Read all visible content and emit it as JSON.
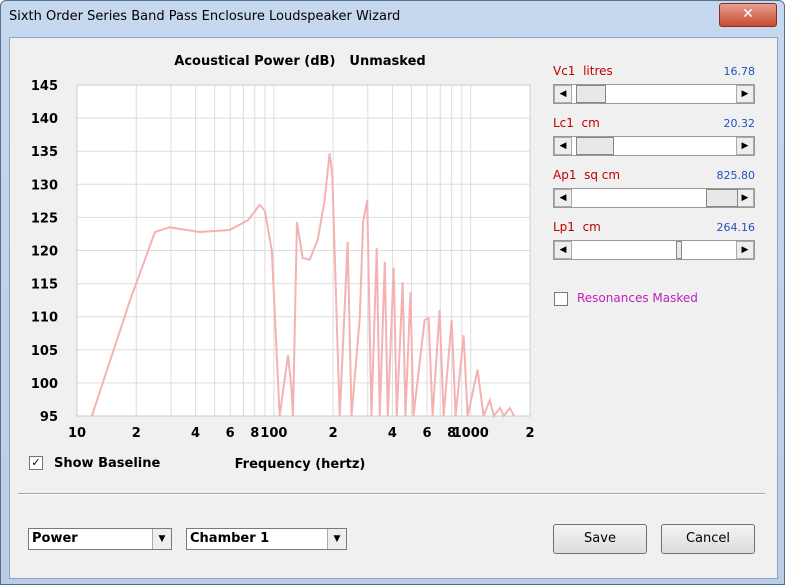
{
  "window": {
    "title": "Sixth Order Series Band Pass Enclosure Loudspeaker Wizard"
  },
  "chart_data": {
    "type": "line",
    "title": "Acoustical Power (dB)",
    "subtitle": "Unmasked",
    "x_label": "Frequency (hertz)",
    "x_scale": "log",
    "grid": true,
    "xlim": [
      10,
      2000
    ],
    "ylim": [
      95,
      145
    ],
    "xticks": [
      10,
      {
        "value": 20,
        "label": "2"
      },
      {
        "value": 40,
        "label": "4"
      },
      {
        "value": 60,
        "label": "6"
      },
      {
        "value": 80,
        "label": "8"
      },
      100,
      {
        "value": 200,
        "label": "2"
      },
      {
        "value": 400,
        "label": "4"
      },
      {
        "value": 600,
        "label": "6"
      },
      {
        "value": 800,
        "label": "8"
      },
      1000,
      {
        "value": 2000,
        "label": "2"
      }
    ],
    "minor_xticks": [
      30,
      50,
      70,
      90,
      300,
      500,
      700,
      900
    ],
    "yticks": [
      95,
      100,
      105,
      110,
      115,
      120,
      125,
      130,
      135,
      140,
      145
    ],
    "series": [
      {
        "color": "#f4b2b2",
        "x": [
          11.9,
          18.6,
          24.9,
          29.6,
          42,
          59.8,
          74,
          84.7,
          90,
          97.6,
          107,
          118,
          123,
          125,
          131,
          140,
          152,
          167,
          181,
          192,
          198,
          216,
          237,
          248,
          273,
          284,
          298,
          313,
          333,
          345,
          366,
          379,
          406,
          421,
          451,
          466,
          494,
          512,
          583,
          611,
          640,
          695,
          728,
          800,
          838,
          920,
          964,
          1083,
          1162,
          1250,
          1311,
          1406,
          1474,
          1580,
          1660
        ],
        "values": [
          95,
          112.5,
          122.8,
          123.5,
          122.8,
          123.1,
          124.6,
          126.9,
          126,
          120,
          95,
          104.2,
          99,
          95,
          124.3,
          118.9,
          118.6,
          121.6,
          127.6,
          134.7,
          131.4,
          95,
          121.3,
          95,
          109.8,
          124.3,
          127.6,
          95,
          120.4,
          95,
          118.3,
          95,
          117.4,
          95,
          115.2,
          95,
          113.7,
          95,
          109.5,
          109.8,
          95,
          111,
          95,
          109.5,
          95,
          107.2,
          95,
          102,
          95,
          97.4,
          95,
          96.2,
          95,
          96.2,
          95
        ]
      }
    ]
  },
  "sliders": [
    {
      "label": "Vc1  litres",
      "value": "16.78"
    },
    {
      "label": "Lc1  cm",
      "value": "20.32"
    },
    {
      "label": "Ap1  sq cm",
      "value": "825.80"
    },
    {
      "label": "Lp1  cm",
      "value": "264.16"
    }
  ],
  "resonances_checkbox": "Resonances Masked",
  "baseline_checkbox": "Show Baseline",
  "dropdowns": [
    "Power",
    "Chamber 1"
  ],
  "buttons": [
    "Save",
    "Cancel"
  ]
}
